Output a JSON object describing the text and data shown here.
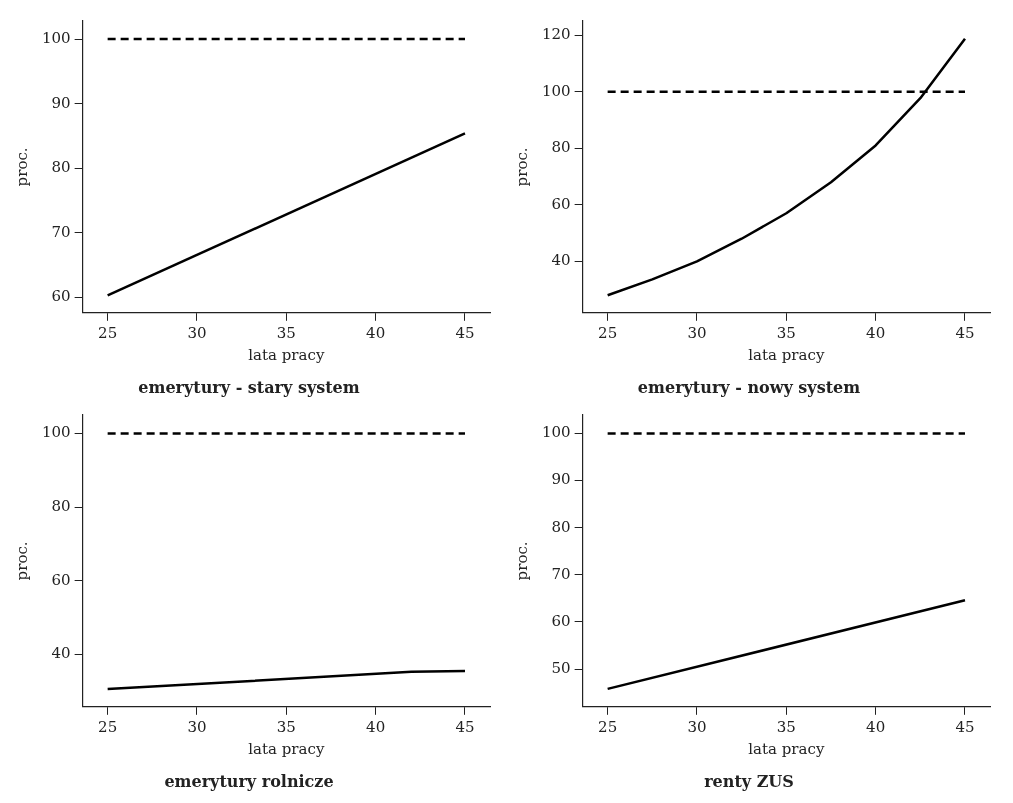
{
  "chart_data": [
    {
      "type": "line",
      "title": "emerytury - stary system",
      "xlabel": "lata pracy",
      "ylabel": "proc.",
      "xlim": [
        23.6,
        46.4
      ],
      "xticks": [
        25,
        30,
        35,
        40,
        45
      ],
      "ylim": [
        57.6,
        102.8
      ],
      "yticks": [
        60,
        70,
        80,
        90,
        100
      ],
      "grid": false,
      "legend": false,
      "series": [
        {
          "color": "#000000",
          "x": [
            25,
            45
          ],
          "values": [
            60.3,
            85.4
          ],
          "line_style": "solid"
        },
        {
          "color": "#000000",
          "x": [
            25,
            45
          ],
          "values": [
            100,
            100
          ],
          "line_style": "dashed"
        }
      ]
    },
    {
      "type": "line",
      "title": "emerytury - nowy system",
      "xlabel": "lata pracy",
      "ylabel": "proc.",
      "xlim": [
        23.6,
        46.4
      ],
      "xticks": [
        25,
        30,
        35,
        40,
        45
      ],
      "ylim": [
        21.8,
        125
      ],
      "yticks": [
        40,
        60,
        80,
        100,
        120
      ],
      "grid": false,
      "legend": false,
      "series": [
        {
          "color": "#000000",
          "x": [
            25,
            27.5,
            30,
            32.5,
            35,
            37.5,
            40,
            42.5,
            45
          ],
          "values": [
            28,
            33.6,
            40,
            48,
            57,
            68,
            81,
            97.7,
            118.7
          ],
          "line_style": "solid"
        },
        {
          "color": "#000000",
          "x": [
            25,
            45
          ],
          "values": [
            100,
            100
          ],
          "line_style": "dashed"
        }
      ]
    },
    {
      "type": "line",
      "title": "emerytury rolnicze",
      "xlabel": "lata pracy",
      "ylabel": "proc.",
      "xlim": [
        23.6,
        46.4
      ],
      "xticks": [
        25,
        30,
        35,
        40,
        45
      ],
      "ylim": [
        25.8,
        105
      ],
      "yticks": [
        40,
        60,
        80,
        100
      ],
      "grid": false,
      "legend": false,
      "series": [
        {
          "color": "#000000",
          "x": [
            25,
            42,
            45
          ],
          "values": [
            30.6,
            35.3,
            35.5
          ],
          "line_style": "solid"
        },
        {
          "color": "#000000",
          "x": [
            25,
            45
          ],
          "values": [
            100,
            100
          ],
          "line_style": "dashed"
        }
      ]
    },
    {
      "type": "line",
      "title": "renty ZUS",
      "xlabel": "lata pracy",
      "ylabel": "proc.",
      "xlim": [
        23.6,
        46.4
      ],
      "xticks": [
        25,
        30,
        35,
        40,
        45
      ],
      "ylim": [
        42,
        103.9
      ],
      "yticks": [
        50,
        60,
        70,
        80,
        90,
        100
      ],
      "grid": false,
      "legend": false,
      "series": [
        {
          "color": "#000000",
          "x": [
            25,
            45
          ],
          "values": [
            45.8,
            64.6
          ],
          "line_style": "solid"
        },
        {
          "color": "#000000",
          "x": [
            25,
            45
          ],
          "values": [
            100,
            100
          ],
          "line_style": "dashed"
        }
      ]
    }
  ]
}
